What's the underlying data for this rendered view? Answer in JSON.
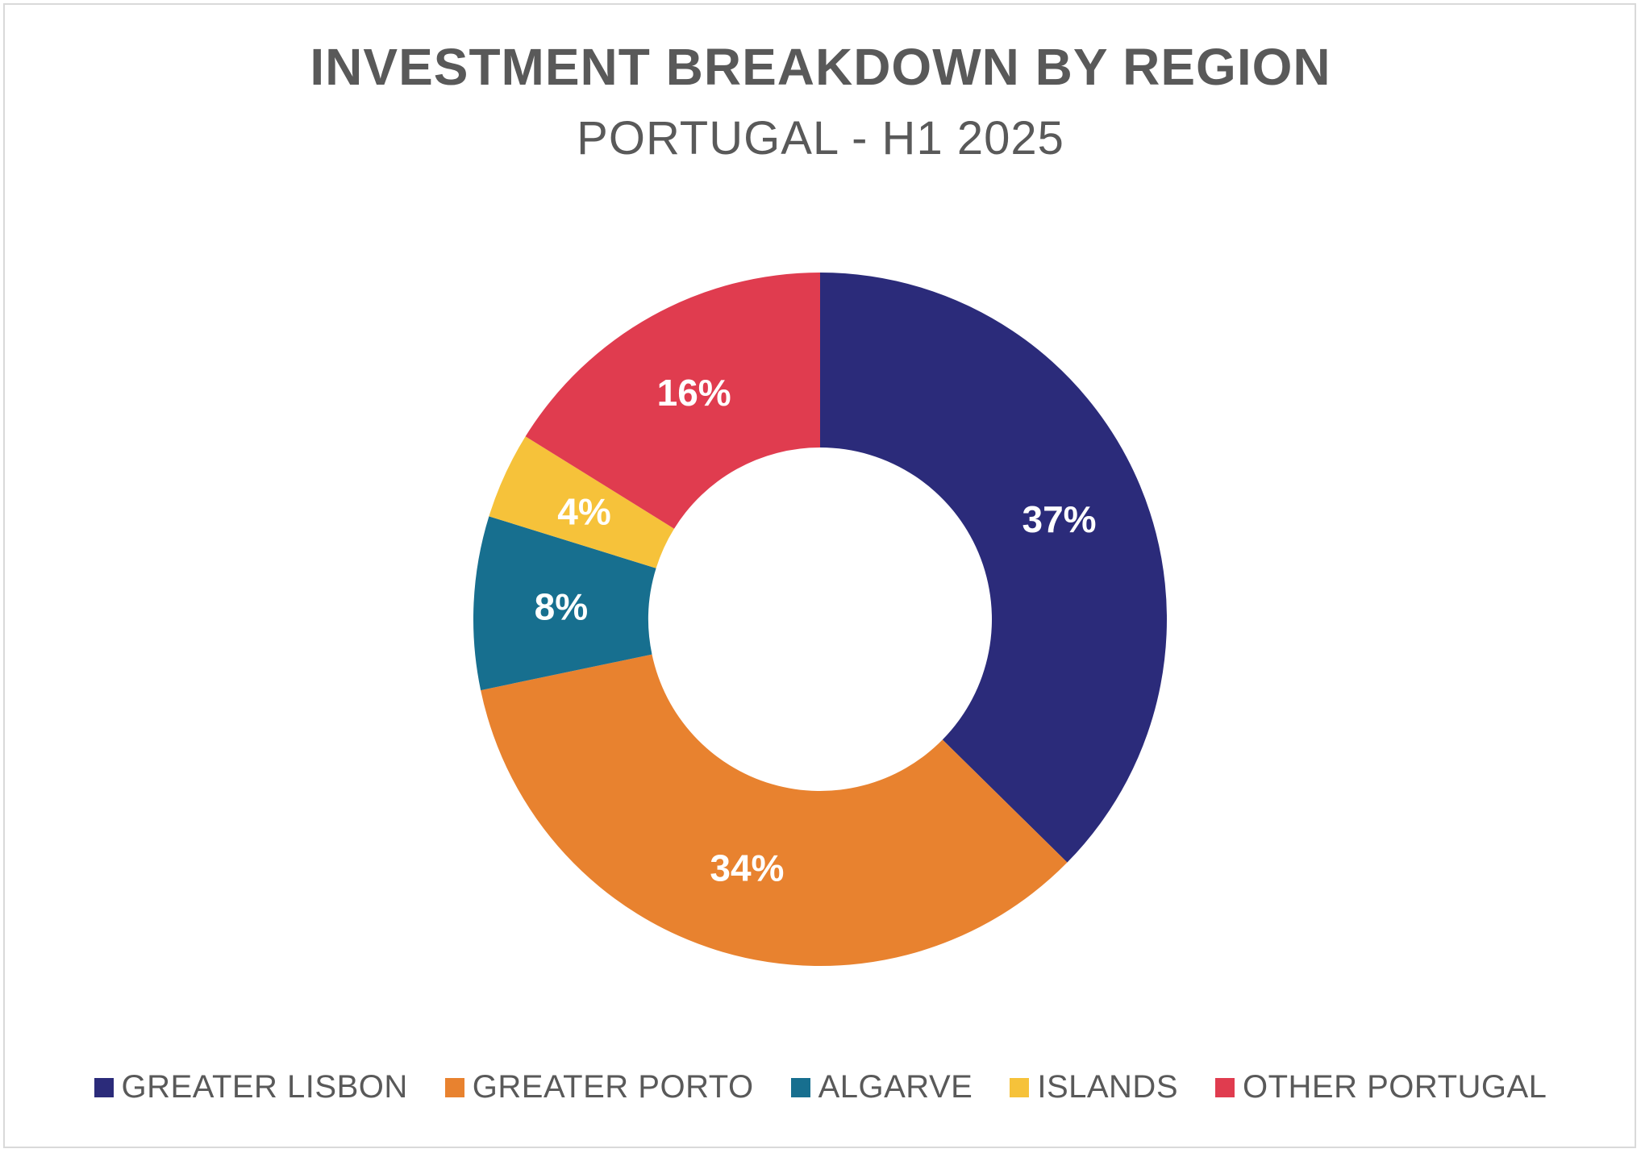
{
  "chart_data": {
    "type": "pie",
    "style": "donut",
    "title": "INVESTMENT BREAKDOWN BY REGION",
    "subtitle": "PORTUGAL - H1 2025",
    "categories": [
      "GREATER LISBON",
      "GREATER PORTO",
      "ALGARVE",
      "ISLANDS",
      "OTHER PORTUGAL"
    ],
    "values": [
      37,
      34,
      8,
      4,
      16
    ],
    "labels": [
      "37%",
      "34%",
      "8%",
      "4%",
      "16%"
    ],
    "colors": [
      "#2b2b7a",
      "#e8822f",
      "#176f8f",
      "#f6c23a",
      "#e03c4f"
    ],
    "legend_position": "bottom"
  }
}
